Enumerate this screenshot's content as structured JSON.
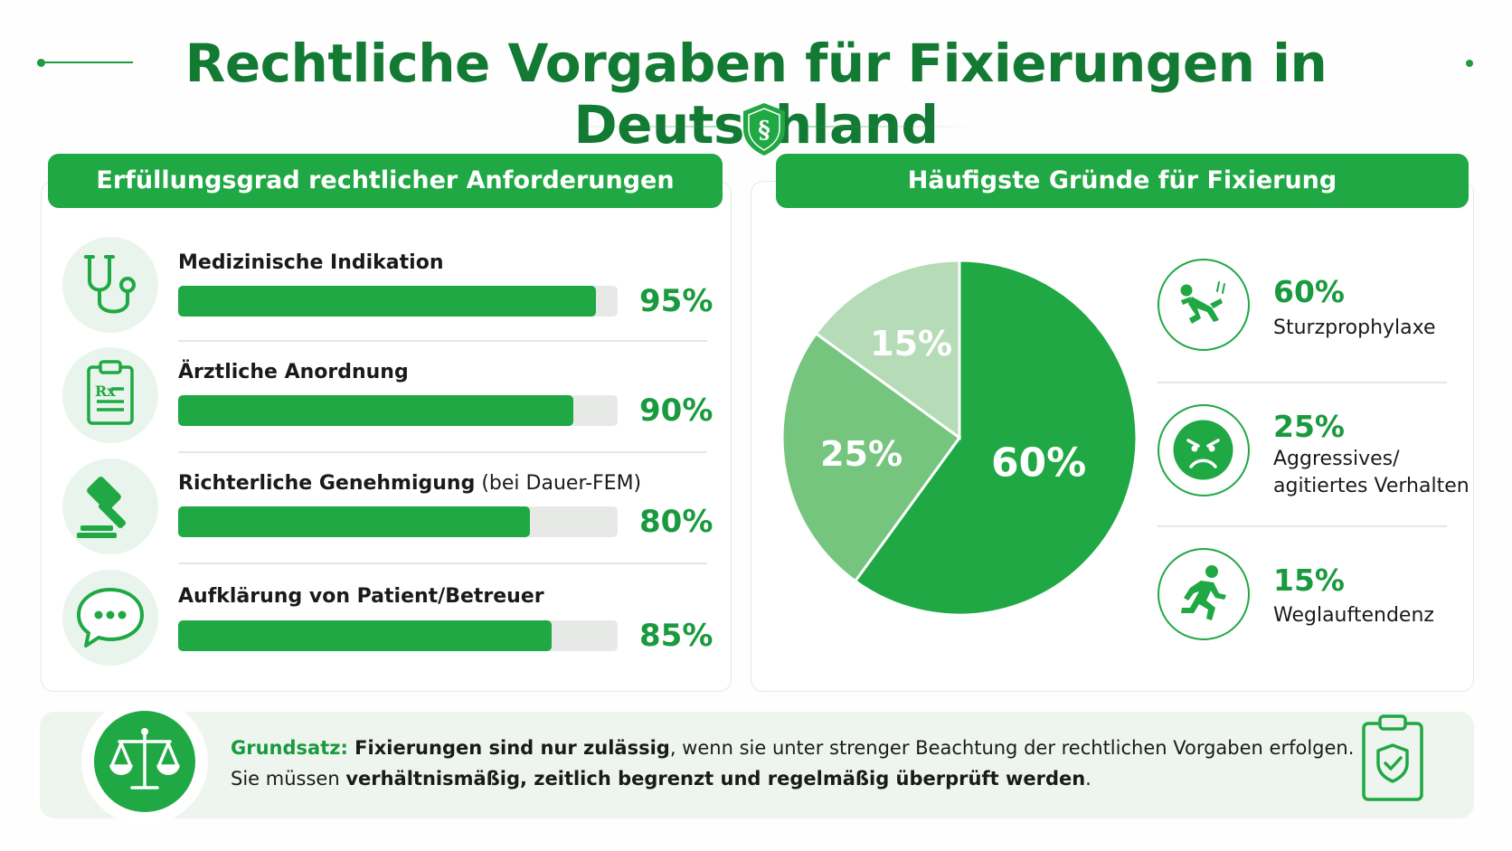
{
  "title": "Rechtliche Vorgaben für Fixierungen in Deutschland",
  "colors": {
    "primary": "#1fa843",
    "title": "#137a34",
    "pie_dark": "#1fa843",
    "pie_mid": "#76c57f",
    "pie_light": "#b5dcb7",
    "track": "#e7e9e7"
  },
  "left_panel": {
    "header": "Erfüllungsgrad rechtlicher Anforderungen"
  },
  "right_panel": {
    "header": "Häufigste Gründe für Fixierung"
  },
  "requirements": [
    {
      "label": "Medizinische Indikation",
      "note": "",
      "value": 95,
      "value_text": "95%",
      "icon": "stethoscope-icon"
    },
    {
      "label": "Ärztliche Anordnung",
      "note": "",
      "value": 90,
      "value_text": "90%",
      "icon": "prescription-clipboard-icon"
    },
    {
      "label": "Richterliche Genehmigung",
      "note": " (bei Dauer-FEM)",
      "value": 80,
      "value_text": "80%",
      "icon": "gavel-icon"
    },
    {
      "label": "Aufklärung von Patient/Betreuer",
      "note": "",
      "value": 85,
      "value_text": "85%",
      "icon": "speech-bubble-icon"
    }
  ],
  "chart_data": [
    {
      "type": "bar",
      "title": "Erfüllungsgrad rechtlicher Anforderungen",
      "orientation": "horizontal",
      "categories": [
        "Medizinische Indikation",
        "Ärztliche Anordnung",
        "Richterliche Genehmigung (bei Dauer-FEM)",
        "Aufklärung von Patient/Betreuer"
      ],
      "values": [
        95,
        90,
        80,
        85
      ],
      "unit": "%",
      "xlim": [
        0,
        100
      ]
    },
    {
      "type": "pie",
      "title": "Häufigste Gründe für Fixierung",
      "categories": [
        "Sturzprophylaxe",
        "Aggressives/ agitiertes Verhalten",
        "Weglauftendenz"
      ],
      "values": [
        60,
        25,
        15
      ],
      "labels": [
        "60%",
        "25%",
        "15%"
      ],
      "unit": "%",
      "colors": [
        "#1fa843",
        "#76c57f",
        "#b5dcb7"
      ]
    }
  ],
  "reasons": [
    {
      "pct": "60%",
      "line1": "Sturzprophylaxe",
      "line2": "",
      "icon": "falling-person-icon"
    },
    {
      "pct": "25%",
      "line1": "Aggressives/",
      "line2": "agitiertes Verhalten",
      "icon": "angry-face-icon"
    },
    {
      "pct": "15%",
      "line1": "Weglauftendenz",
      "line2": "",
      "icon": "running-person-icon"
    }
  ],
  "footer": {
    "lead": "Grundsatz:",
    "bold1": " Fixierungen sind nur zulässig",
    "text1": ", wenn sie unter strenger Beachtung der rechtlichen Vorgaben erfolgen.",
    "text2": "Sie müssen ",
    "bold2": "verhältnismäßig, zeitlich begrenzt und regelmäßig überprüft werden",
    "text3": "."
  }
}
